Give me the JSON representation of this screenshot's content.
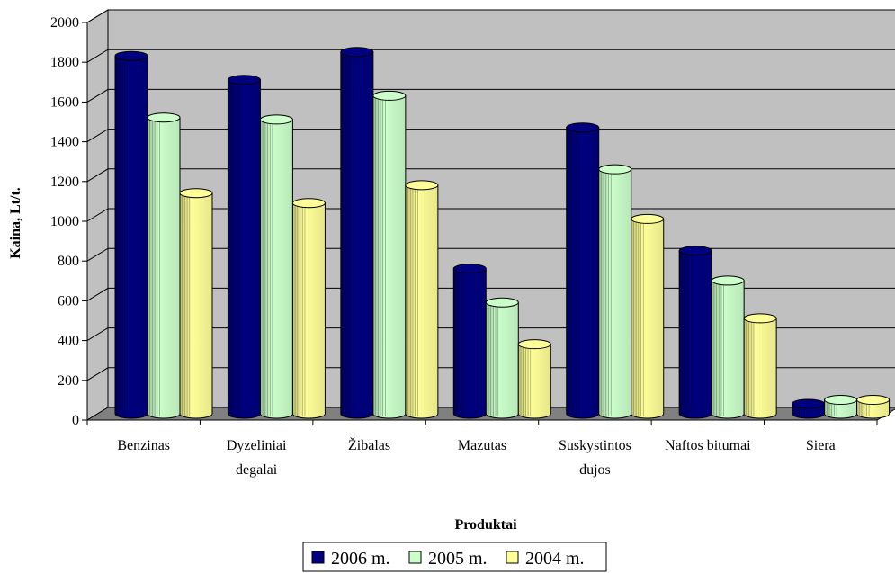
{
  "chart_data": {
    "type": "bar",
    "title": "",
    "xlabel": "Produktai",
    "ylabel": "Kaina, Lt/t.",
    "ylim": [
      0,
      2000
    ],
    "yticks": [
      0,
      200,
      400,
      600,
      800,
      1000,
      1200,
      1400,
      1600,
      1800,
      2000
    ],
    "categories": [
      [
        "Benzinas"
      ],
      [
        "Dyzeliniai",
        "degalai"
      ],
      [
        "Žibalas"
      ],
      [
        "Mazutas"
      ],
      [
        "Suskystintos",
        "dujos"
      ],
      [
        "Naftos bitumai"
      ],
      [
        "Siera"
      ]
    ],
    "series": [
      {
        "name": "2006 m.",
        "color": "#000080",
        "values": [
          1800,
          1680,
          1820,
          730,
          1440,
          820,
          50
        ]
      },
      {
        "name": "2005 m.",
        "color": "#ccffcc",
        "values": [
          1490,
          1480,
          1600,
          560,
          1230,
          670,
          70
        ]
      },
      {
        "name": "2004 m.",
        "color": "#ffff99",
        "values": [
          1110,
          1060,
          1150,
          350,
          980,
          480,
          70
        ]
      }
    ],
    "grid": true,
    "legend_position": "bottom",
    "style": "3d-cylinder"
  }
}
